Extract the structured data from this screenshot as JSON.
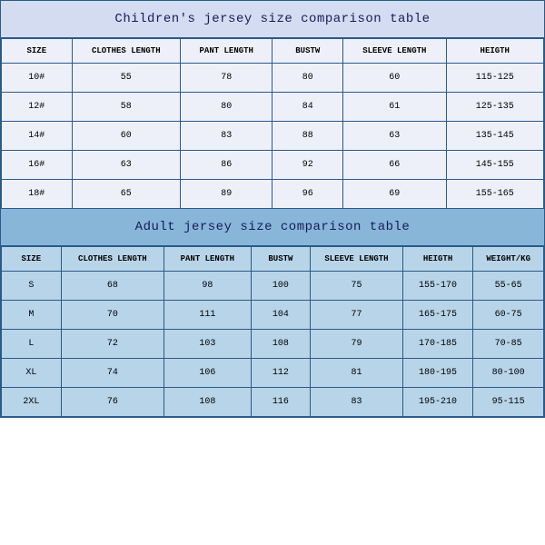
{
  "children": {
    "title": "Children's jersey size comparison table",
    "title_bg": "#d3dcf0",
    "body_bg": "#eef0f9",
    "border_color": "#2a5a8a",
    "columns": [
      "SIZE",
      "CLOTHES LENGTH",
      "PANT LENGTH",
      "BUSTW",
      "SLEEVE LENGTH",
      "HEIGTH"
    ],
    "col_widths": [
      "13%",
      "20%",
      "17%",
      "13%",
      "19%",
      "18%"
    ],
    "rows": [
      [
        "10#",
        "55",
        "78",
        "80",
        "60",
        "115-125"
      ],
      [
        "12#",
        "58",
        "80",
        "84",
        "61",
        "125-135"
      ],
      [
        "14#",
        "60",
        "83",
        "88",
        "63",
        "135-145"
      ],
      [
        "16#",
        "63",
        "86",
        "92",
        "66",
        "145-155"
      ],
      [
        "18#",
        "65",
        "89",
        "96",
        "69",
        "155-165"
      ]
    ]
  },
  "adult": {
    "title": "Adult jersey size comparison table",
    "title_bg": "#87b6d9",
    "body_bg": "#b8d4e8",
    "border_color": "#2a5a8a",
    "columns": [
      "SIZE",
      "CLOTHES LENGTH",
      "PANT LENGTH",
      "BUSTW",
      "SLEEVE LENGTH",
      "HEIGTH",
      "WEIGHT/KG"
    ],
    "col_widths": [
      "11%",
      "19%",
      "16%",
      "11%",
      "17%",
      "13%",
      "13%"
    ],
    "rows": [
      [
        "S",
        "68",
        "98",
        "100",
        "75",
        "155-170",
        "55-65"
      ],
      [
        "M",
        "70",
        "111",
        "104",
        "77",
        "165-175",
        "60-75"
      ],
      [
        "L",
        "72",
        "103",
        "108",
        "79",
        "170-185",
        "70-85"
      ],
      [
        "XL",
        "74",
        "106",
        "112",
        "81",
        "180-195",
        "80-100"
      ],
      [
        "2XL",
        "76",
        "108",
        "116",
        "83",
        "195-210",
        "95-115"
      ]
    ]
  }
}
